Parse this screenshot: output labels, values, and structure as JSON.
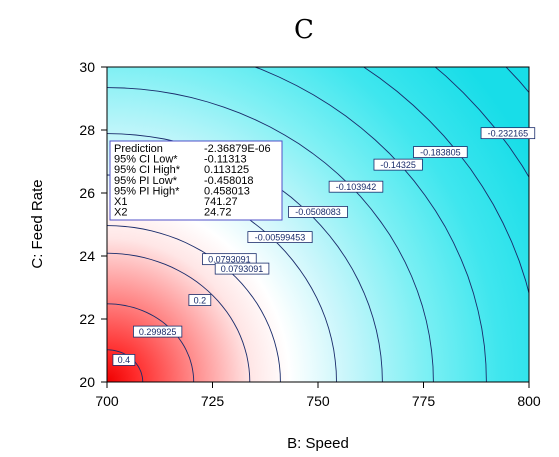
{
  "chart_data": {
    "type": "contour",
    "title": "C",
    "xlabel": "B: Speed",
    "ylabel": "C: Feed Rate",
    "xlim": [
      700,
      800
    ],
    "ylim": [
      20,
      30
    ],
    "x_ticks": [
      "700",
      "725",
      "750",
      "775",
      "800"
    ],
    "y_ticks": [
      "20",
      "22",
      "24",
      "26",
      "28",
      "30"
    ],
    "colors": {
      "high": "#ff0000",
      "mid": "#ffffff",
      "low": "#00dde8",
      "contour_line": "#1a2c6b"
    },
    "contour_labels": [
      {
        "text": "0.4",
        "x": 704,
        "y": 20.7
      },
      {
        "text": "0.299825",
        "x": 712,
        "y": 21.6
      },
      {
        "text": "0.2",
        "x": 722,
        "y": 22.6
      },
      {
        "text": "0.0793091",
        "x": 729,
        "y": 23.9
      },
      {
        "text": "0.0793091",
        "x": 732,
        "y": 23.6
      },
      {
        "text": "-0.00599453",
        "x": 741,
        "y": 24.6
      },
      {
        "text": "-0.0508083",
        "x": 750,
        "y": 25.4
      },
      {
        "text": "-0.103942",
        "x": 759,
        "y": 26.2
      },
      {
        "text": "-0.14325",
        "x": 769,
        "y": 26.9
      },
      {
        "text": "-0.183805",
        "x": 779,
        "y": 27.3
      },
      {
        "text": "-0.232165",
        "x": 795,
        "y": 27.9
      }
    ],
    "info_box": [
      {
        "label": "Prediction",
        "value": "-2.36879E-06"
      },
      {
        "label": "95% CI Low*",
        "value": "-0.11313"
      },
      {
        "label": "95% CI High*",
        "value": "0.113125"
      },
      {
        "label": "95% PI Low*",
        "value": "-0.458018"
      },
      {
        "label": "95% PI High*",
        "value": "0.458013"
      },
      {
        "label": "X1",
        "value": "741.27"
      },
      {
        "label": "X2",
        "value": "24.72"
      }
    ]
  }
}
